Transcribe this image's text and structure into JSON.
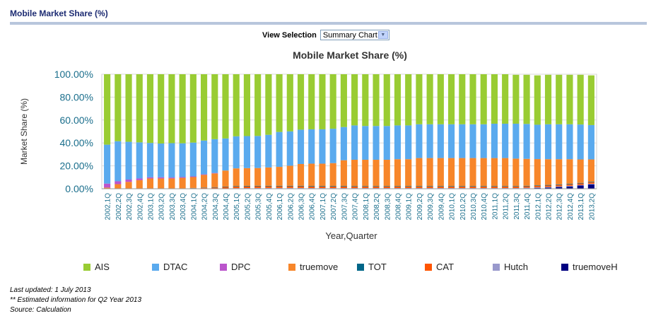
{
  "page": {
    "title": "Mobile Market Share (%)"
  },
  "view_selection": {
    "label": "View Selection",
    "selected": "Summary Chart"
  },
  "footer": {
    "updated": "Last updated: 1 July 2013",
    "estimated": "** Estimated information for Q2 Year 2013",
    "source": "Source: Calculation"
  },
  "chart_data": {
    "type": "bar",
    "stacked": true,
    "title": "Mobile Market Share (%)",
    "xlabel": "Year,Quarter",
    "ylabel": "Market Share (%)",
    "ylim": [
      0,
      100
    ],
    "yticks": [
      "0.00%",
      "20.00%",
      "40.00%",
      "60.00%",
      "80.00%",
      "100.00%"
    ],
    "grid": true,
    "legend_position": "bottom",
    "categories": [
      "2002,1Q",
      "2002,2Q",
      "2002,3Q",
      "2002,4Q",
      "2003,1Q",
      "2003,2Q",
      "2003,3Q",
      "2003,4Q",
      "2004,1Q",
      "2004,2Q",
      "2004,3Q",
      "2004,4Q",
      "2005,1Q",
      "2005,2Q",
      "2005,3Q",
      "2005,4Q",
      "2006,1Q",
      "2006,2Q",
      "2006,3Q",
      "2006,4Q",
      "2007,1Q",
      "2007,2Q",
      "2007,3Q",
      "2007,4Q",
      "2008,1Q",
      "2008,2Q",
      "2008,3Q",
      "2008,4Q",
      "2009,1Q",
      "2009,2Q",
      "2009,3Q",
      "2009,4Q",
      "2010,1Q",
      "2010,2Q",
      "2010,3Q",
      "2010,4Q",
      "2011,1Q",
      "2011,2Q",
      "2011,3Q",
      "2011,4Q",
      "2012,1Q",
      "2012,2Q",
      "2012,3Q",
      "2012,4Q",
      "2013,1Q",
      "2013,2Q"
    ],
    "series": [
      {
        "name": "truemoveH",
        "color": "#000080",
        "values": [
          0,
          0,
          0,
          0,
          0,
          0,
          0,
          0,
          0,
          0,
          0,
          0,
          0,
          0,
          0,
          0,
          0,
          0,
          0,
          0,
          0,
          0,
          0,
          0,
          0,
          0,
          0,
          0,
          0,
          0,
          0,
          0,
          0,
          0,
          0,
          0,
          0,
          0,
          0,
          0.3,
          0.6,
          1.0,
          1.5,
          2.0,
          2.8,
          3.8
        ]
      },
      {
        "name": "Hutch",
        "color": "#9999cc",
        "values": [
          0,
          0,
          0,
          0,
          0,
          0,
          0,
          0,
          0,
          0,
          0,
          0.3,
          0.5,
          0.6,
          0.7,
          0.7,
          0.7,
          0.7,
          0.7,
          0.6,
          0.6,
          0.6,
          0.6,
          0.6,
          0.6,
          0.6,
          0.6,
          0.6,
          0.6,
          0.6,
          0.6,
          0.6,
          0.6,
          0.6,
          0.6,
          0.6,
          0.6,
          0.6,
          0.6,
          0.6,
          0.6,
          0.6,
          0.6,
          0.6,
          0.6,
          0.6
        ]
      },
      {
        "name": "CAT",
        "color": "#ff5500",
        "values": [
          0,
          0,
          0,
          0,
          0,
          0,
          0,
          0,
          0.5,
          0.8,
          1.0,
          1.2,
          1.3,
          1.4,
          1.4,
          1.4,
          1.4,
          1.4,
          1.4,
          1.3,
          1.3,
          1.3,
          1.3,
          1.2,
          1.2,
          1.2,
          1.2,
          1.2,
          1.2,
          1.2,
          1.2,
          1.2,
          1.2,
          1.2,
          1.2,
          1.2,
          1.2,
          1.2,
          1.2,
          1.2,
          1.2,
          1.2,
          1.2,
          1.2,
          1.2,
          1.2
        ]
      },
      {
        "name": "TOT",
        "color": "#006688",
        "values": [
          0,
          0,
          0,
          0,
          0,
          0,
          0,
          0,
          0.2,
          0.3,
          0.4,
          0.4,
          0.5,
          0.5,
          0.5,
          0.5,
          0.5,
          0.5,
          0.5,
          0.5,
          0.5,
          0.5,
          0.5,
          0.5,
          0.5,
          0.5,
          0.5,
          0.5,
          0.5,
          0.5,
          0.5,
          0.5,
          0.5,
          0.5,
          0.5,
          0.5,
          0.5,
          0.5,
          0.5,
          0.5,
          0.5,
          0.5,
          0.5,
          0.5,
          0.5,
          0.5
        ]
      },
      {
        "name": "truemove",
        "color": "#f7862a",
        "values": [
          1.0,
          4.0,
          6.0,
          7.5,
          9.0,
          9.0,
          9.0,
          9.5,
          9.5,
          11.0,
          12.0,
          14.0,
          15.5,
          15.5,
          15.5,
          16.0,
          16.5,
          17.5,
          19.0,
          19.5,
          19.5,
          20.0,
          22.5,
          23.0,
          23.0,
          23.0,
          23.0,
          23.5,
          23.5,
          24.5,
          24.5,
          24.5,
          24.5,
          24.5,
          24.5,
          24.5,
          24.5,
          24.5,
          24.0,
          23.5,
          23.0,
          22.5,
          22.0,
          21.5,
          20.5,
          19.5
        ]
      },
      {
        "name": "DPC",
        "color": "#bb55cc",
        "values": [
          3.5,
          2.5,
          2.0,
          1.5,
          1.0,
          1.0,
          0.8,
          0.7,
          0.6,
          0.5,
          0.4,
          0,
          0,
          0,
          0,
          0,
          0,
          0,
          0,
          0,
          0,
          0,
          0,
          0,
          0,
          0,
          0,
          0,
          0,
          0,
          0,
          0,
          0,
          0,
          0,
          0,
          0,
          0,
          0,
          0,
          0,
          0,
          0,
          0,
          0,
          0
        ]
      },
      {
        "name": "DTAC",
        "color": "#5aaaee",
        "values": [
          34.0,
          35.0,
          33.0,
          31.5,
          30.0,
          29.5,
          30.0,
          29.5,
          29.5,
          29.5,
          29.5,
          28.0,
          28.0,
          28.0,
          28.0,
          28.5,
          30.5,
          30.0,
          30.0,
          30.0,
          30.0,
          30.0,
          29.0,
          30.0,
          29.5,
          29.5,
          29.5,
          29.5,
          29.5,
          29.5,
          29.5,
          29.5,
          29.5,
          29.5,
          29.5,
          29.5,
          30.0,
          30.0,
          30.5,
          30.5,
          30.0,
          30.5,
          30.5,
          30.5,
          30.5,
          30.0
        ]
      },
      {
        "name": "AIS",
        "color": "#99cc33",
        "values": [
          61.5,
          58.5,
          59.0,
          59.5,
          60.0,
          60.5,
          60.2,
          60.3,
          59.7,
          57.9,
          56.7,
          56.1,
          54.2,
          54.0,
          53.9,
          52.9,
          50.4,
          49.9,
          48.4,
          48.1,
          48.1,
          47.6,
          46.1,
          44.7,
          45.2,
          45.2,
          45.2,
          44.7,
          44.7,
          43.7,
          43.7,
          43.7,
          43.7,
          43.7,
          43.7,
          43.7,
          43.2,
          43.2,
          42.7,
          42.9,
          43.1,
          43.2,
          43.2,
          43.2,
          43.4,
          43.4
        ]
      }
    ],
    "legend_order": [
      "AIS",
      "DTAC",
      "DPC",
      "truemove",
      "TOT",
      "CAT",
      "Hutch",
      "truemoveH"
    ]
  }
}
